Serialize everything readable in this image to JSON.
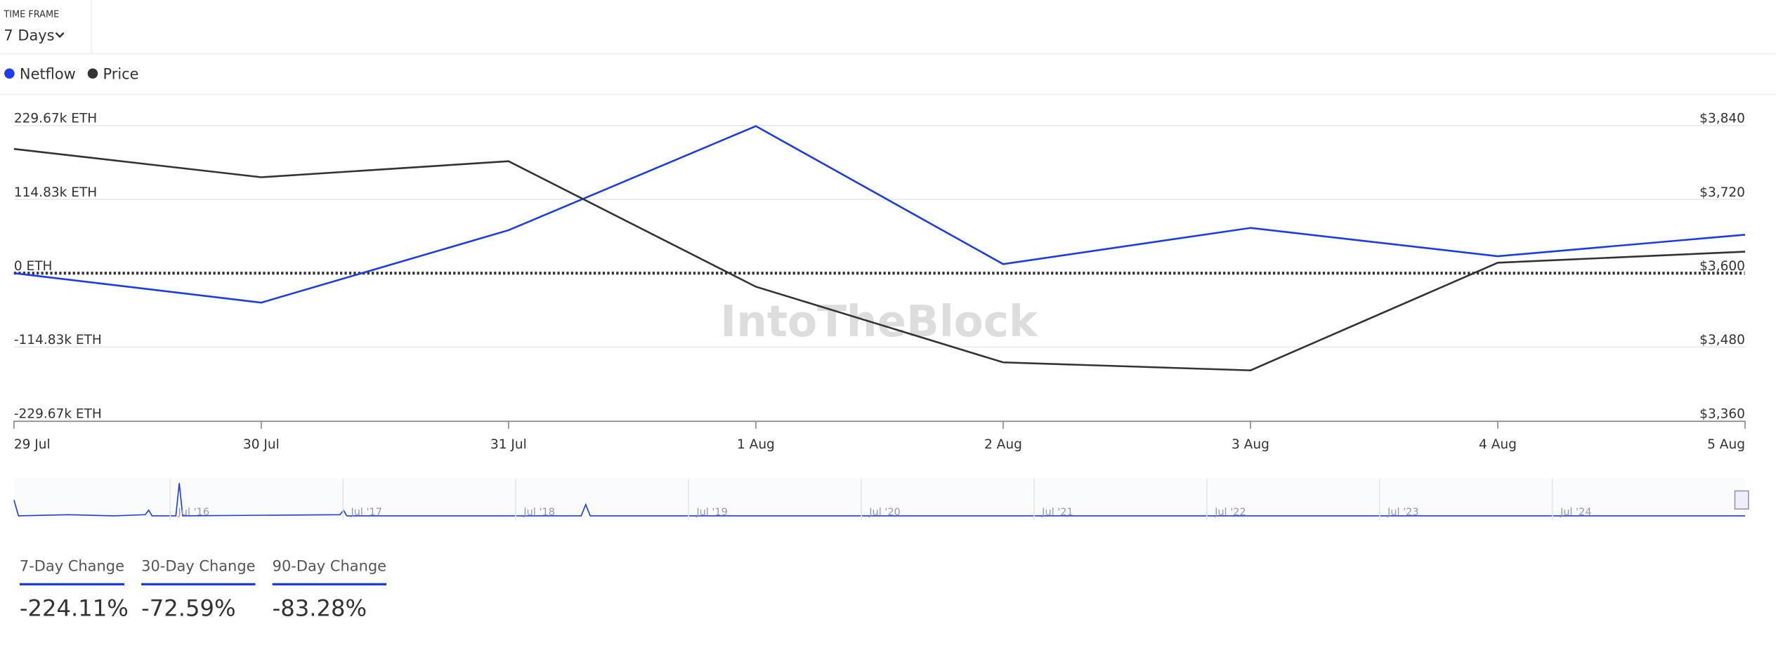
{
  "timeframe": {
    "label": "TIME FRAME",
    "value": "7 Days"
  },
  "chart_data": {
    "type": "line",
    "categories": [
      "29 Jul",
      "30 Jul",
      "31 Jul",
      "1 Aug",
      "2 Aug",
      "3 Aug",
      "4 Aug",
      "5 Aug"
    ],
    "series": [
      {
        "name": "Netflow",
        "color": "#1c3ce6",
        "values": [
          0,
          -45800,
          66900,
          228800,
          14100,
          70400,
          26400,
          59800
        ]
      },
      {
        "name": "Price",
        "color": "#333333",
        "axis": "y2",
        "values": [
          3802,
          3756,
          3782,
          3578,
          3455,
          3442,
          3617,
          3635
        ]
      }
    ],
    "ylim": [
      -229670,
      229670
    ],
    "yticks": [
      {
        "value": -229670,
        "label": "-229.67k ETH"
      },
      {
        "value": -114830,
        "label": "-114.83k ETH"
      },
      {
        "value": 0,
        "label": "0 ETH"
      },
      {
        "value": 114830,
        "label": "114.83k ETH"
      },
      {
        "value": 229670,
        "label": "229.67k ETH"
      }
    ],
    "y2lim": [
      3360,
      3840
    ],
    "y2ticks": [
      {
        "value": 3360,
        "label": "$3,360"
      },
      {
        "value": 3480,
        "label": "$3,480"
      },
      {
        "value": 3600,
        "label": "$3,600"
      },
      {
        "value": 3720,
        "label": "$3,720"
      },
      {
        "value": 3840,
        "label": "$3,840"
      }
    ],
    "grid": true,
    "watermark": "IntoTheBlock"
  },
  "navigator": {
    "labels": [
      "Jul '16",
      "Jul '17",
      "Jul '18",
      "Jul '19",
      "Jul '20",
      "Jul '21",
      "Jul '22",
      "Jul '23",
      "Jul '24"
    ]
  },
  "stats": [
    {
      "label": "7-Day Change",
      "value": "-224.11%"
    },
    {
      "label": "30-Day Change",
      "value": "-72.59%"
    },
    {
      "label": "90-Day Change",
      "value": "-83.28%"
    }
  ]
}
